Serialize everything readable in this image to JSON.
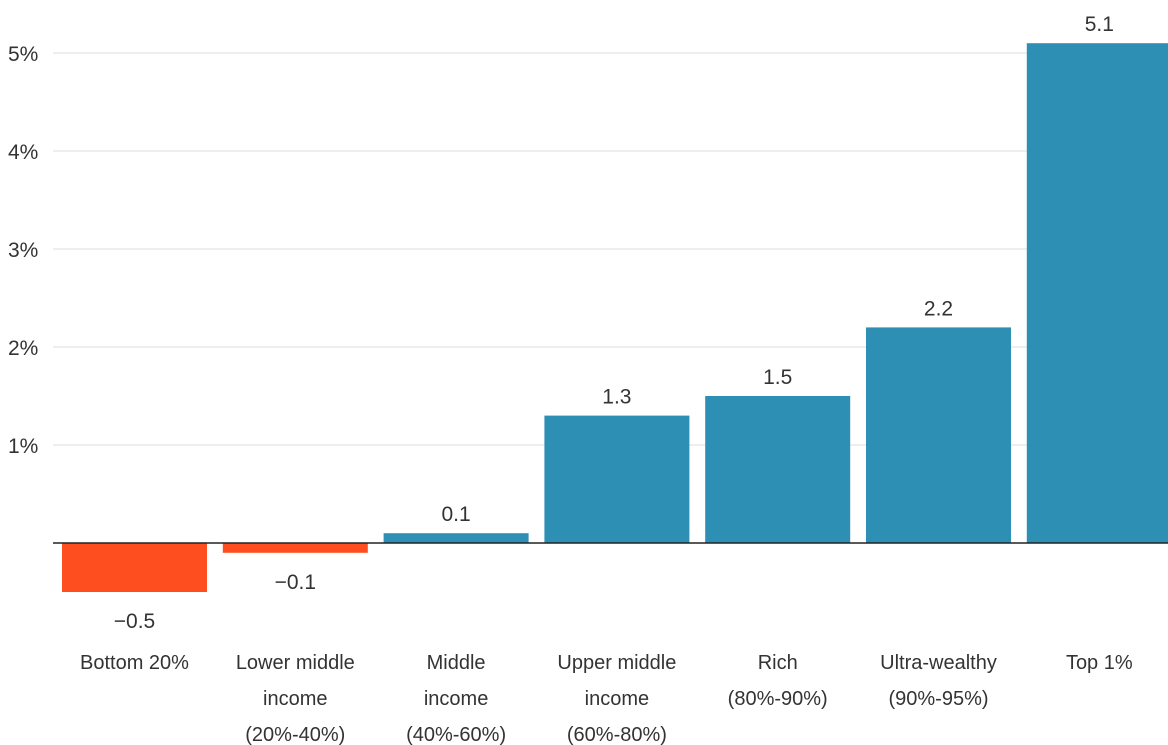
{
  "chart_data": {
    "type": "bar",
    "title": "",
    "xlabel": "",
    "ylabel": "",
    "ylim": [
      -0.8,
      5.3
    ],
    "y_ticks": [
      {
        "value": 1,
        "label": "1%"
      },
      {
        "value": 2,
        "label": "2%"
      },
      {
        "value": 3,
        "label": "3%"
      },
      {
        "value": 4,
        "label": "4%"
      },
      {
        "value": 5,
        "label": "5%"
      }
    ],
    "grid": true,
    "categories": [
      [
        "Bottom 20%"
      ],
      [
        "Lower middle",
        "income",
        "(20%-40%)"
      ],
      [
        "Middle",
        "income",
        "(40%-60%)"
      ],
      [
        "Upper middle",
        "income",
        "(60%-80%)"
      ],
      [
        "Rich",
        "(80%-90%)"
      ],
      [
        "Ultra-wealthy",
        "(90%-95%)"
      ],
      [
        "Top 1%"
      ]
    ],
    "values": [
      -0.5,
      -0.1,
      0.1,
      1.3,
      1.5,
      2.2,
      5.1
    ],
    "value_labels": [
      "−0.5",
      "−0.1",
      "0.1",
      "1.3",
      "1.5",
      "2.2",
      "5.1"
    ],
    "colors": {
      "positive": "#2e8fb4",
      "negative": "#fe4e20"
    }
  }
}
